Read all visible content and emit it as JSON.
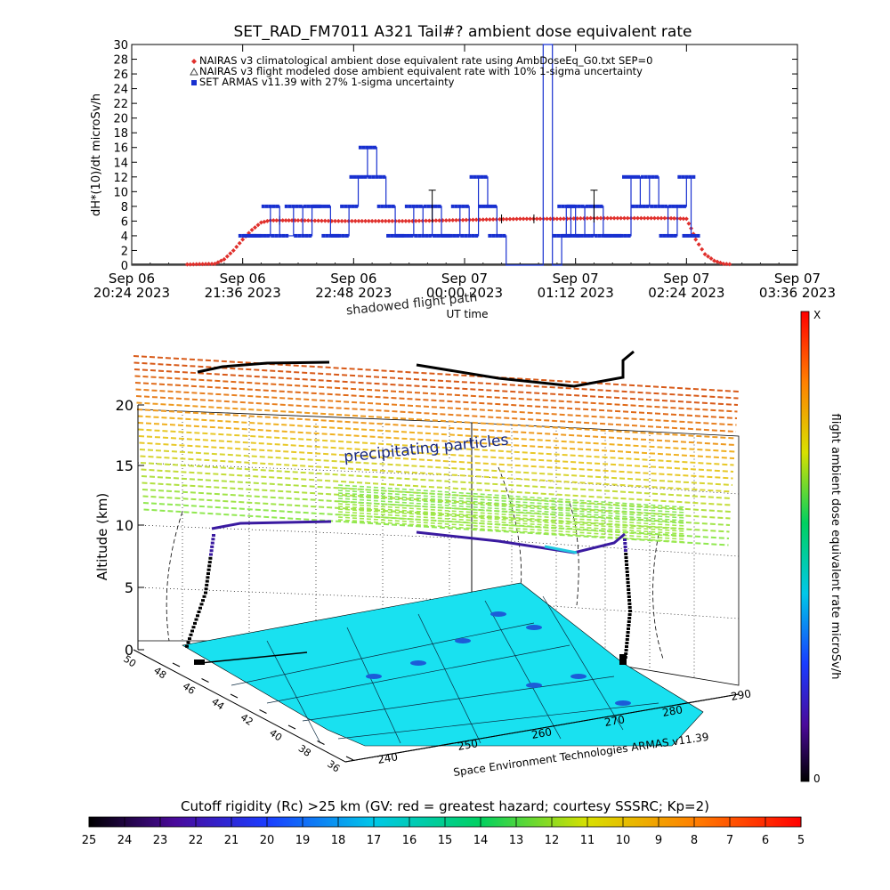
{
  "top_chart": {
    "title": "SET_RAD_FM7011  A321 Tail#? ambient dose equivalent rate",
    "ylabel": "dH*(10)/dt microSv/h",
    "xlabel": "UT time",
    "y_ticks": [
      "0",
      "2",
      "4",
      "6",
      "8",
      "10",
      "12",
      "14",
      "16",
      "18",
      "20",
      "22",
      "24",
      "26",
      "28",
      "30"
    ],
    "x_ticks": [
      {
        "line1": "Sep 06",
        "line2": "20:24 2023"
      },
      {
        "line1": "Sep 06",
        "line2": "21:36 2023"
      },
      {
        "line1": "Sep 06",
        "line2": "22:48 2023"
      },
      {
        "line1": "Sep 07",
        "line2": "00:00 2023"
      },
      {
        "line1": "Sep 07",
        "line2": "01:12 2023"
      },
      {
        "line1": "Sep 07",
        "line2": "02:24 2023"
      },
      {
        "line1": "Sep 07",
        "line2": "03:36 2023"
      }
    ],
    "legend": [
      {
        "label": "NAIRAS v3 climatological ambient dose equivalent rate using AmbDoseEq_G0.txt SEP=0",
        "color": "#e0302c",
        "marker": "diamond"
      },
      {
        "label": "NAIRAS v3 flight modeled dose ambient equivalent rate with 10% 1-sigma uncertainty",
        "color": "#444444",
        "marker": "triangle"
      },
      {
        "label": "SET ARMAS v11.39 with 27% 1-sigma uncertainty",
        "color": "#1830d0",
        "marker": "square"
      }
    ]
  },
  "chart_data": [
    {
      "type": "line",
      "title": "SET_RAD_FM7011  A321 Tail#? ambient dose equivalent rate",
      "xlabel": "UT time",
      "ylabel": "dH*(10)/dt microSv/h",
      "x_unit": "hours since Sep 06 20:24 2023 UT",
      "xlim": [
        0,
        7.2
      ],
      "ylim": [
        0,
        30
      ],
      "grid": false,
      "legend_position": "top-left",
      "series": [
        {
          "name": "NAIRAS v3 climatological ambient dose equivalent rate using AmbDoseEq_G0.txt SEP=0",
          "color": "#e0302c",
          "x": [
            0.6,
            0.9,
            1.0,
            1.1,
            1.2,
            1.3,
            1.4,
            1.5,
            1.6,
            1.8,
            2.2,
            2.6,
            3.0,
            3.4,
            3.8,
            4.2,
            4.6,
            5.0,
            5.4,
            5.8,
            6.0,
            6.05,
            6.1,
            6.2,
            6.3,
            6.4,
            6.5
          ],
          "y": [
            0.1,
            0.2,
            0.8,
            2.0,
            3.5,
            4.8,
            5.8,
            6.1,
            6.1,
            6.1,
            6.0,
            6.0,
            6.0,
            6.1,
            6.2,
            6.3,
            6.3,
            6.4,
            6.4,
            6.4,
            6.3,
            5.0,
            3.5,
            1.5,
            0.6,
            0.2,
            0.1
          ]
        },
        {
          "name": "NAIRAS v3 flight modeled dose ambient equivalent rate with 10% 1-sigma uncertainty",
          "color": "#444444",
          "x": [
            0.0,
            7.2
          ],
          "y": [
            0.0,
            0.0
          ]
        },
        {
          "name": "SET ARMAS v11.39 with 27% 1-sigma uncertainty",
          "color": "#1830d0",
          "x": [
            1.25,
            1.3,
            1.4,
            1.5,
            1.6,
            1.75,
            1.85,
            1.95,
            2.05,
            2.15,
            2.25,
            2.35,
            2.45,
            2.55,
            2.65,
            2.75,
            2.85,
            2.95,
            3.05,
            3.15,
            3.25,
            3.35,
            3.45,
            3.55,
            3.65,
            3.75,
            3.85,
            3.95,
            4.05,
            4.15,
            4.25,
            4.35,
            4.45,
            4.55,
            4.6,
            4.65,
            4.7,
            4.75,
            4.8,
            4.9,
            5.0,
            5.1,
            5.2,
            5.3,
            5.4,
            5.5,
            5.6,
            5.7,
            5.8,
            5.9,
            6.0,
            6.05
          ],
          "y": [
            4,
            4,
            4,
            8,
            4,
            8,
            4,
            8,
            8,
            4,
            4,
            8,
            12,
            16,
            12,
            8,
            4,
            4,
            8,
            4,
            8,
            4,
            4,
            8,
            4,
            12,
            8,
            4,
            0,
            0,
            0,
            0,
            30,
            0,
            0,
            4,
            8,
            4,
            8,
            4,
            8,
            4,
            4,
            4,
            12,
            8,
            12,
            8,
            4,
            8,
            12,
            4
          ]
        }
      ]
    },
    {
      "type": "scatter",
      "title": "",
      "xlabel": "",
      "ylabel": "Altitude (km)",
      "z_ticks": [
        "0",
        "5",
        "10",
        "15",
        "20"
      ],
      "lat_ticks": [
        "48",
        "46",
        "44",
        "42",
        "40",
        "38",
        "36"
      ],
      "lon_ticks": [
        "240",
        "250",
        "260",
        "270",
        "280",
        "290"
      ],
      "lat_top_label": "50",
      "annotations": [
        "precipitating particles",
        "shadowed flight path"
      ],
      "credit": "Space Environment Technologies ARMAS v11.39",
      "colorbar": {
        "label": "flight ambient dose equivalent rate microSv/h",
        "max_label": "X",
        "min_label": "0"
      }
    },
    {
      "type": "heatmap",
      "title": "Cutoff rigidity (Rc) >25 km (GV: red = greatest hazard; courtesy SSSRC; Kp=2)",
      "tick_labels": [
        "25",
        "24",
        "23",
        "22",
        "21",
        "20",
        "19",
        "18",
        "17",
        "16",
        "15",
        "14",
        "13",
        "12",
        "11",
        "10",
        "9",
        "8",
        "7",
        "6",
        "5"
      ]
    }
  ]
}
